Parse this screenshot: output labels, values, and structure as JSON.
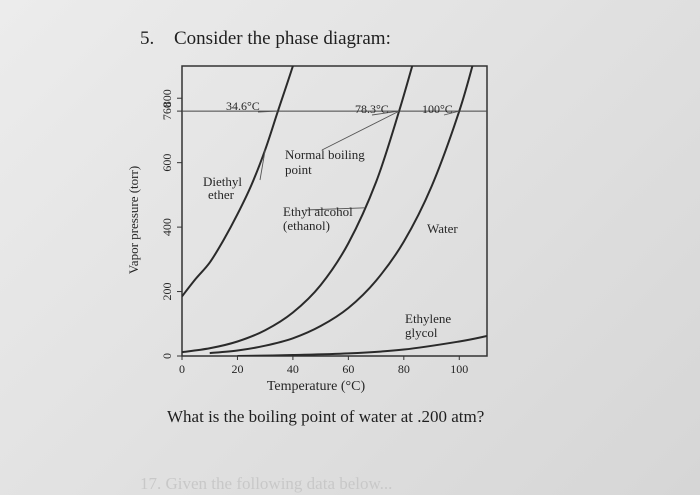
{
  "question": {
    "number": "5.",
    "prompt": "Consider the phase diagram:",
    "followup": "What is the boiling point of water at .200 atm?",
    "faint_text": "17. Given the following data below..."
  },
  "chart_data": {
    "type": "line",
    "ylabel": "Vapor pressure (torr)",
    "xlabel": "Temperature (°C)",
    "xlim": [
      0,
      110
    ],
    "ylim": [
      0,
      900
    ],
    "x_ticks": [
      0,
      20,
      40,
      60,
      80,
      100
    ],
    "y_ticks": [
      {
        "label": "0",
        "value": 0
      },
      {
        "label": "200",
        "value": 200
      },
      {
        "label": "400",
        "value": 400
      },
      {
        "label": "600",
        "value": 600
      },
      {
        "label": "760",
        "value": 760
      },
      {
        "label": "800",
        "value": 800
      }
    ],
    "reference_line": {
      "y": 760
    },
    "series": [
      {
        "name": "Diethyl ether",
        "x": [
          0,
          5,
          10,
          15,
          20,
          25,
          30,
          34.6,
          40,
          45
        ],
        "y": [
          185,
          240,
          290,
          360,
          440,
          530,
          640,
          760,
          900,
          1040
        ]
      },
      {
        "name": "Ethyl alcohol (ethanol)",
        "x": [
          0,
          10,
          20,
          30,
          40,
          50,
          60,
          70,
          78.3,
          85
        ],
        "y": [
          12,
          24,
          45,
          80,
          135,
          220,
          350,
          540,
          760,
          960
        ]
      },
      {
        "name": "Water",
        "x": [
          10,
          20,
          30,
          40,
          50,
          60,
          70,
          80,
          90,
          100,
          106
        ],
        "y": [
          9,
          17,
          32,
          55,
          93,
          149,
          234,
          355,
          526,
          760,
          940
        ]
      },
      {
        "name": "Ethylene glycol",
        "x": [
          20,
          40,
          60,
          80,
          100,
          110
        ],
        "y": [
          0,
          3,
          8,
          20,
          45,
          62
        ]
      }
    ],
    "annotations": {
      "ether_bp": "34.6°C",
      "ethanol_bp": "78.3°C",
      "water_bp": "100°C",
      "normal_bp": "Normal boiling point",
      "ether_line1": "Diethyl",
      "ether_line2": "ether",
      "ethanol_line1": "Ethyl alcohol",
      "ethanol_line2": "(ethanol)",
      "water": "Water",
      "glycol_line1": "Ethylene",
      "glycol_line2": "glycol"
    }
  }
}
